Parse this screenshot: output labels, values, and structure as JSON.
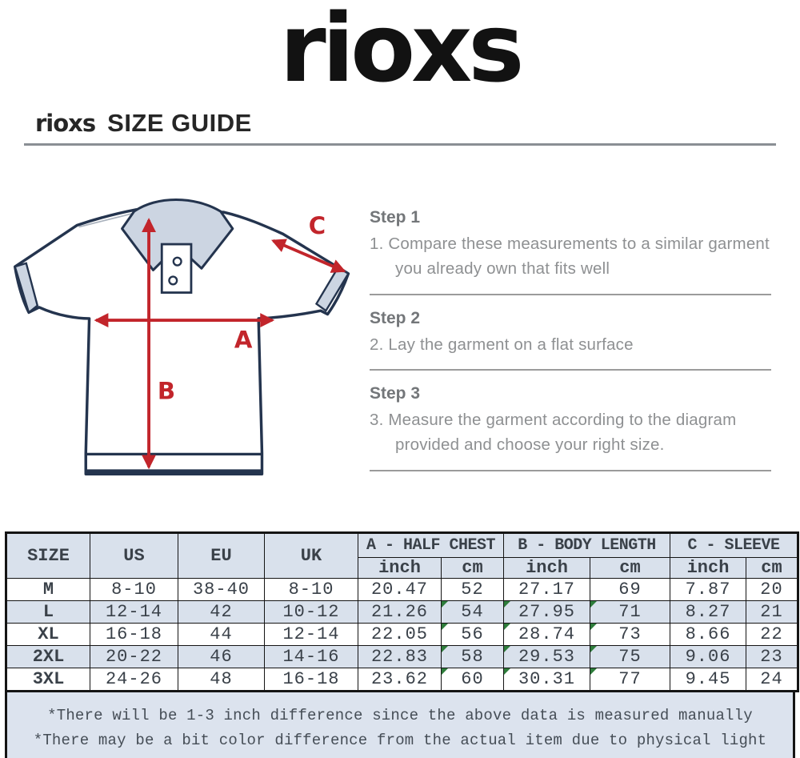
{
  "brand": {
    "logo_text": "rioxs"
  },
  "header": {
    "brand": "rioxs",
    "title": "SIZE GUIDE"
  },
  "diagram": {
    "label_a": "A",
    "label_b": "B",
    "label_c": "C",
    "arrow_color": "#c2252b",
    "outline_color": "#24344e",
    "trim_color": "#ccd5e2"
  },
  "steps": [
    {
      "title": "Step 1",
      "text": "1. Compare these measurements to a similar garment you already own that fits well"
    },
    {
      "title": "Step 2",
      "text": "2. Lay the garment on a flat surface"
    },
    {
      "title": "Step 3",
      "text": "3. Measure the garment according to the diagram provided and choose your right size."
    }
  ],
  "table": {
    "simple_headers": [
      "SIZE",
      "US",
      "EU",
      "UK"
    ],
    "group_headers": [
      "A - HALF CHEST",
      "B - BODY LENGTH",
      "C - SLEEVE"
    ],
    "unit_headers": [
      "inch",
      "cm",
      "inch",
      "cm",
      "inch",
      "cm"
    ],
    "rows": [
      [
        "M",
        "8-10",
        "38-40",
        "8-10",
        "20.47",
        "52",
        "27.17",
        "69",
        "7.87",
        "20"
      ],
      [
        "L",
        "12-14",
        "42",
        "10-12",
        "21.26",
        "54",
        "27.95",
        "71",
        "8.27",
        "21"
      ],
      [
        "XL",
        "16-18",
        "44",
        "12-14",
        "22.05",
        "56",
        "28.74",
        "73",
        "8.66",
        "22"
      ],
      [
        "2XL",
        "20-22",
        "46",
        "14-16",
        "22.83",
        "58",
        "29.53",
        "75",
        "9.06",
        "23"
      ],
      [
        "3XL",
        "24-26",
        "48",
        "16-18",
        "23.62",
        "60",
        "30.31",
        "77",
        "9.45",
        "24"
      ]
    ],
    "marker_rows": [
      1,
      2,
      3,
      4
    ],
    "marker_cols": [
      5,
      6,
      7
    ],
    "marker_color": "#2e7d3b"
  },
  "notes": [
    "*There will be 1-3 inch difference since the above data is measured manually",
    "*There may be a bit color difference from the actual item due to physical light"
  ]
}
